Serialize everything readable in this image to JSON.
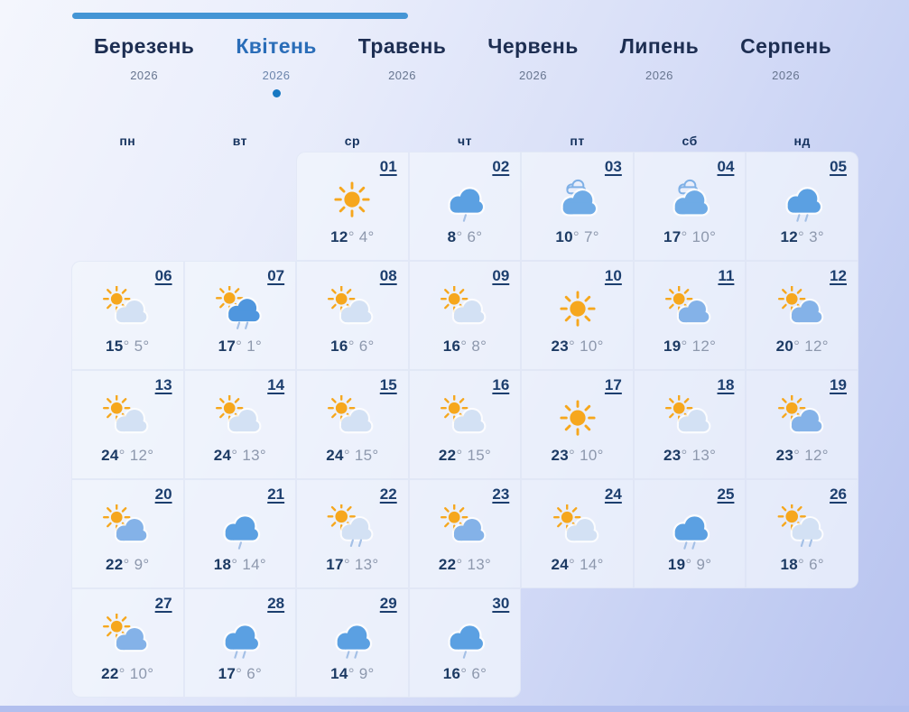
{
  "colors": {
    "accent_blue": "#2a6db8",
    "active_dot": "#1778c2",
    "progress_bar": "#4495d5",
    "day_number": "#1c3e6e",
    "temp_high": "#1c3a63",
    "temp_low": "#8d98ad",
    "sun": "#f6a71d",
    "cloud_light": "#d3e1f4",
    "cloud_medium": "#84b2e8",
    "cloud_rain": "#5ba0e2",
    "cloud_rain_dark": "#4f96de",
    "rain_drop": "#a4c0e6"
  },
  "month_tabs": [
    {
      "label": "Березень",
      "year": "2026",
      "active": false
    },
    {
      "label": "Квітень",
      "year": "2026",
      "active": true
    },
    {
      "label": "Травень",
      "year": "2026",
      "active": false
    },
    {
      "label": "Червень",
      "year": "2026",
      "active": false
    },
    {
      "label": "Липень",
      "year": "2026",
      "active": false
    },
    {
      "label": "Серпень",
      "year": "2026",
      "active": false
    }
  ],
  "weekdays": [
    "пн",
    "вт",
    "ср",
    "чт",
    "пт",
    "сб",
    "нд"
  ],
  "calendar": {
    "leading_empty_cells": 2,
    "trailing_empty_cells": 3,
    "days": [
      {
        "day": "01",
        "icon": "sun",
        "high": "12",
        "low": "4"
      },
      {
        "day": "02",
        "icon": "light-rain",
        "high": "8",
        "low": "6"
      },
      {
        "day": "03",
        "icon": "overcast",
        "high": "10",
        "low": "7"
      },
      {
        "day": "04",
        "icon": "overcast",
        "high": "17",
        "low": "10"
      },
      {
        "day": "05",
        "icon": "rain",
        "high": "12",
        "low": "3"
      },
      {
        "day": "06",
        "icon": "partly-cloudy",
        "high": "15",
        "low": "5"
      },
      {
        "day": "07",
        "icon": "sun-rain",
        "high": "17",
        "low": "1"
      },
      {
        "day": "08",
        "icon": "partly-cloudy",
        "high": "16",
        "low": "6"
      },
      {
        "day": "09",
        "icon": "partly-cloudy",
        "high": "16",
        "low": "8"
      },
      {
        "day": "10",
        "icon": "sun",
        "high": "23",
        "low": "10"
      },
      {
        "day": "11",
        "icon": "mostly-cloudy",
        "high": "19",
        "low": "12"
      },
      {
        "day": "12",
        "icon": "mostly-cloudy",
        "high": "20",
        "low": "12"
      },
      {
        "day": "13",
        "icon": "partly-cloudy",
        "high": "24",
        "low": "12"
      },
      {
        "day": "14",
        "icon": "partly-cloudy",
        "high": "24",
        "low": "13"
      },
      {
        "day": "15",
        "icon": "partly-cloudy",
        "high": "24",
        "low": "15"
      },
      {
        "day": "16",
        "icon": "partly-cloudy",
        "high": "22",
        "low": "15"
      },
      {
        "day": "17",
        "icon": "sun",
        "high": "23",
        "low": "10"
      },
      {
        "day": "18",
        "icon": "partly-cloudy",
        "high": "23",
        "low": "13"
      },
      {
        "day": "19",
        "icon": "mostly-cloudy",
        "high": "23",
        "low": "12"
      },
      {
        "day": "20",
        "icon": "mostly-cloudy",
        "high": "22",
        "low": "9"
      },
      {
        "day": "21",
        "icon": "light-rain",
        "high": "18",
        "low": "14"
      },
      {
        "day": "22",
        "icon": "partly-rain",
        "high": "17",
        "low": "13"
      },
      {
        "day": "23",
        "icon": "mostly-cloudy",
        "high": "22",
        "low": "13"
      },
      {
        "day": "24",
        "icon": "partly-cloudy",
        "high": "24",
        "low": "14"
      },
      {
        "day": "25",
        "icon": "rain",
        "high": "19",
        "low": "9"
      },
      {
        "day": "26",
        "icon": "partly-rain",
        "high": "18",
        "low": "6"
      },
      {
        "day": "27",
        "icon": "mostly-cloudy",
        "high": "22",
        "low": "10"
      },
      {
        "day": "28",
        "icon": "rain",
        "high": "17",
        "low": "6"
      },
      {
        "day": "29",
        "icon": "rain",
        "high": "14",
        "low": "9"
      },
      {
        "day": "30",
        "icon": "light-rain",
        "high": "16",
        "low": "6"
      }
    ]
  }
}
